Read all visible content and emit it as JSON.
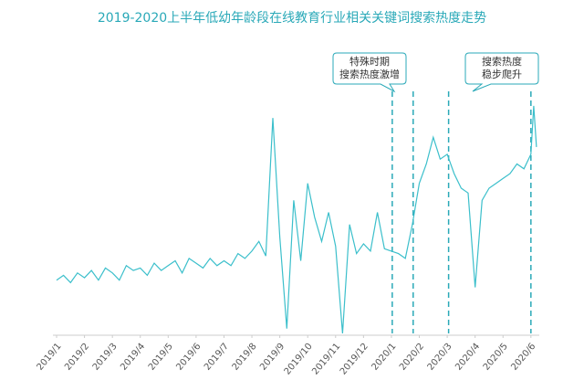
{
  "chart_data": {
    "type": "line",
    "title": "2019-2020上半年低幼年龄段在线教育行业相关关键词搜索热度走势",
    "x": [
      0,
      0.25,
      0.5,
      0.75,
      1,
      1.25,
      1.5,
      1.75,
      2,
      2.25,
      2.5,
      2.75,
      3,
      3.25,
      3.5,
      3.75,
      4,
      4.25,
      4.5,
      4.75,
      5,
      5.25,
      5.5,
      5.75,
      6,
      6.25,
      6.5,
      6.75,
      7,
      7.25,
      7.5,
      7.75,
      8,
      8.25,
      8.5,
      8.75,
      9,
      9.25,
      9.5,
      9.75,
      10,
      10.25,
      10.5,
      10.75,
      11,
      11.25,
      11.5,
      11.75,
      12,
      12.25,
      12.5,
      12.75,
      13,
      13.25,
      13.5,
      13.75,
      14,
      14.25,
      14.5,
      14.75,
      15,
      15.25,
      15.5,
      15.75,
      16,
      16.25,
      16.5,
      16.75,
      17,
      17.1,
      17.2
    ],
    "series": [
      {
        "color": "#3bbfcb",
        "values": [
          22,
          24,
          21,
          25,
          23,
          26,
          22,
          27,
          25,
          22,
          28,
          26,
          27,
          24,
          29,
          26,
          28,
          30,
          25,
          31,
          29,
          27,
          31,
          28,
          30,
          28,
          33,
          31,
          34,
          38,
          32,
          89,
          40,
          2,
          55,
          30,
          62,
          48,
          38,
          50,
          36,
          0,
          45,
          33,
          37,
          34,
          50,
          35,
          34,
          33,
          31,
          45,
          62,
          70,
          81,
          72,
          74,
          66,
          60,
          58,
          19,
          55,
          60,
          62,
          64,
          66,
          70,
          68,
          74,
          94,
          77
        ]
      }
    ],
    "xlim": [
      0,
      17.3
    ],
    "ylim": [
      0,
      100
    ],
    "xticks": [
      {
        "value": 0,
        "label": "2019/1"
      },
      {
        "value": 1,
        "label": "2019/2"
      },
      {
        "value": 2,
        "label": "2019/3"
      },
      {
        "value": 3,
        "label": "2019/4"
      },
      {
        "value": 4,
        "label": "2019/5"
      },
      {
        "value": 5,
        "label": "2019/6"
      },
      {
        "value": 6,
        "label": "2019/7"
      },
      {
        "value": 7,
        "label": "2019/8"
      },
      {
        "value": 8,
        "label": "2019/9"
      },
      {
        "value": 9,
        "label": "2019/10"
      },
      {
        "value": 10,
        "label": "2019/11"
      },
      {
        "value": 11,
        "label": "2019/12"
      },
      {
        "value": 12,
        "label": "2020/1"
      },
      {
        "value": 13,
        "label": "2020/2"
      },
      {
        "value": 14,
        "label": "2020/3"
      },
      {
        "value": 15,
        "label": "2020/4"
      },
      {
        "value": 16,
        "label": "2020/5"
      },
      {
        "value": 17,
        "label": "2020/6"
      }
    ],
    "vlines": [
      12.03,
      12.78,
      14.05,
      17.0
    ],
    "annotations": [
      {
        "text": [
          "特殊时期",
          "搜索热度激增"
        ]
      },
      {
        "text": [
          "搜索热度",
          "稳步爬升"
        ]
      }
    ]
  }
}
